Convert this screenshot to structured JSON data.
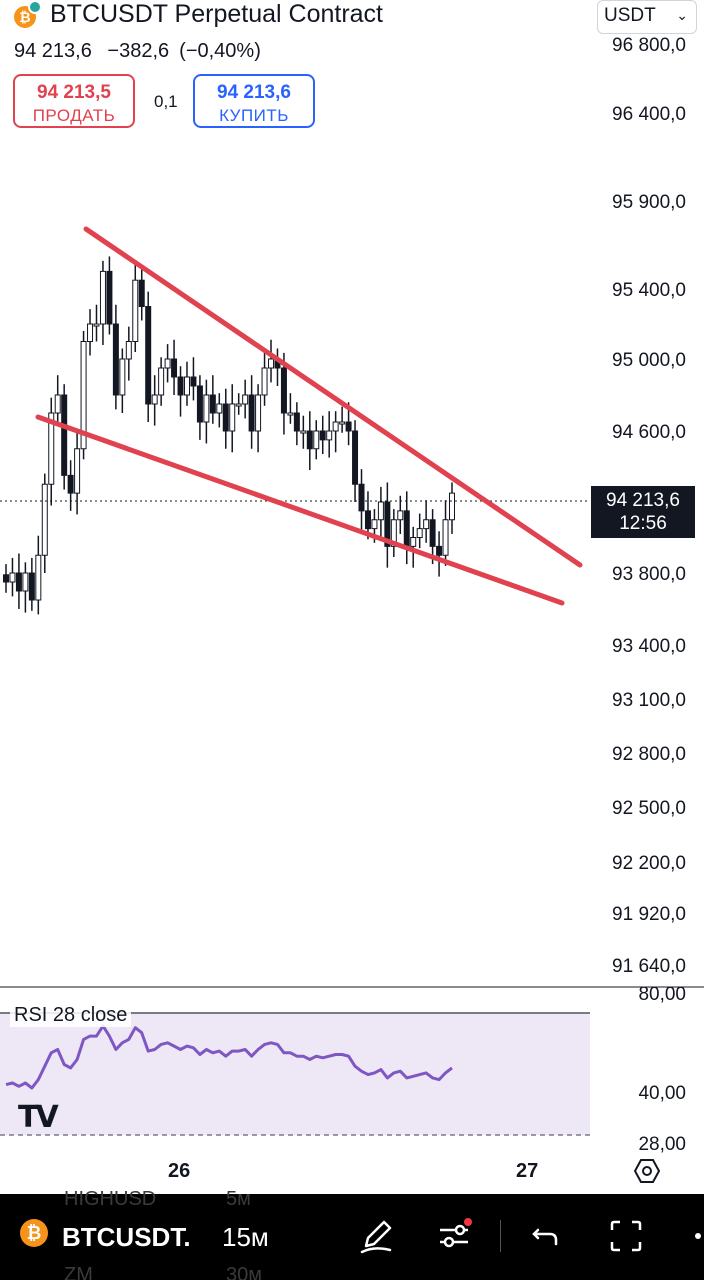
{
  "header": {
    "symbol_title": "BTCUSDT Perpetual Contract",
    "last_price": "94 213,6",
    "change_abs": "−382,6",
    "change_pct": "(−0,40%)",
    "sell": {
      "price": "94 213,5",
      "label": "ПРОДАТЬ"
    },
    "buy": {
      "price": "94 213,6",
      "label": "КУПИТЬ"
    },
    "spread": "0,1",
    "currency": "USDT",
    "logo_letter": "₿"
  },
  "price_axis": {
    "ticks": [
      "96 800,0",
      "96 400,0",
      "95 900,0",
      "95 400,0",
      "95 000,0",
      "94 600,0",
      "93 800,0",
      "93 400,0",
      "93 100,0",
      "92 800,0",
      "92 500,0",
      "92 200,0",
      "91 920,0",
      "91 640,0"
    ]
  },
  "current_price_tag": {
    "price": "94 213,6",
    "countdown": "12:56"
  },
  "rsi": {
    "label": "RSI 28 close",
    "axis_ticks": [
      "80,00",
      "40,00",
      "28,00"
    ],
    "line_color": "#7e57c2"
  },
  "time_axis": {
    "labels": [
      "26",
      "27"
    ]
  },
  "bottom_bar": {
    "symbol": "BTCUSDT.",
    "interval": "15м",
    "ghost_texts": [
      "HIGHUSD",
      "5м",
      "ZM",
      "30м"
    ]
  },
  "colors": {
    "up": "#131722",
    "trendline": "#e0424f",
    "sell": "#e0424f",
    "buy": "#2962ff"
  },
  "chart_data": {
    "type": "candlestick",
    "symbol": "BTCUSDT",
    "interval": "15м",
    "close_series": [
      93750,
      93800,
      93700,
      93800,
      93650,
      93900,
      94300,
      94700,
      94800,
      94350,
      94250,
      94500,
      95100,
      95200,
      95200,
      95500,
      95200,
      94800,
      95000,
      95100,
      95450,
      95300,
      94750,
      94800,
      94950,
      95000,
      94900,
      94800,
      94900,
      94850,
      94650,
      94800,
      94700,
      94750,
      94600,
      94750,
      94750,
      94800,
      94600,
      94800,
      94950,
      95000,
      94950,
      94700,
      94700,
      94600,
      94600,
      94500,
      94600,
      94550,
      94600,
      94650,
      94650,
      94600,
      94300,
      94150,
      94050,
      94100,
      94200,
      93950,
      94100,
      94150,
      93950,
      94000,
      94050,
      94100,
      93950,
      93900,
      94100,
      94250
    ],
    "ylim": [
      91640,
      96800
    ],
    "trendlines": [
      {
        "name": "upper",
        "from": [
          95750
        ],
        "to": [
          93850
        ]
      },
      {
        "name": "lower",
        "from": [
          94650
        ],
        "to": [
          93750
        ]
      }
    ],
    "current_price": 94213.6
  }
}
